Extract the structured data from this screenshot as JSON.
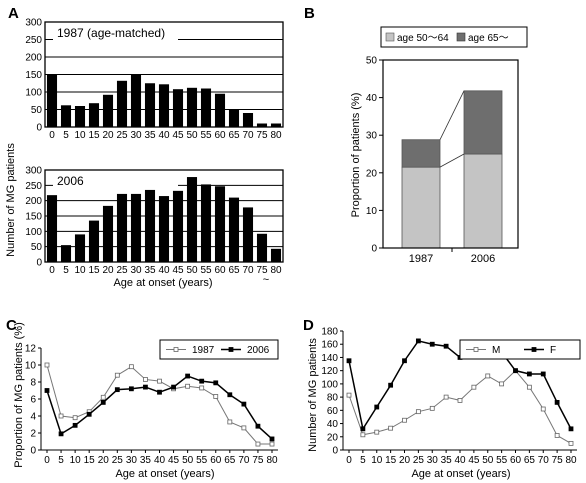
{
  "panels": {
    "a": "A",
    "b": "B",
    "c": "C",
    "d": "D"
  },
  "panel_a": {
    "ylabel": "Number of MG patients",
    "xlabel": "Age at onset  (years)",
    "break_mark": "~",
    "top": {
      "title": "1987 (age-matched)",
      "categories": [
        "0",
        "5",
        "10",
        "15",
        "20",
        "25",
        "30",
        "35",
        "40",
        "45",
        "50",
        "55",
        "60",
        "65",
        "70",
        "75",
        "80"
      ],
      "values": [
        150,
        62,
        60,
        68,
        92,
        132,
        150,
        125,
        122,
        108,
        112,
        110,
        95,
        50,
        40,
        10,
        10
      ],
      "yticks": [
        "0",
        "50",
        "100",
        "150",
        "200",
        "250",
        "300"
      ],
      "ylim": [
        0,
        300
      ]
    },
    "bottom": {
      "title": "2006",
      "categories": [
        "0",
        "5",
        "10",
        "15",
        "20",
        "25",
        "30",
        "35",
        "40",
        "45",
        "50",
        "55",
        "60",
        "65",
        "70",
        "75",
        "80"
      ],
      "values": [
        218,
        55,
        90,
        135,
        183,
        222,
        222,
        235,
        215,
        232,
        277,
        253,
        247,
        210,
        178,
        92,
        43
      ],
      "yticks": [
        "0",
        "50",
        "100",
        "150",
        "200",
        "250",
        "300"
      ],
      "ylim": [
        0,
        300
      ]
    }
  },
  "panel_b": {
    "ylabel": "Proportion of patients (%)",
    "legend": [
      {
        "label": "age 50～64",
        "color": "#c4c4c4"
      },
      {
        "label": "age 65～",
        "color": "#6e6e6e"
      }
    ],
    "categories": [
      "1987",
      "2006"
    ],
    "series": [
      {
        "name": "age 50～64",
        "values": [
          21.5,
          25
        ]
      },
      {
        "name": "age 65～",
        "values": [
          7.3,
          16.8
        ]
      }
    ],
    "yticks": [
      "0",
      "10",
      "20",
      "30",
      "40",
      "50"
    ],
    "ylim": [
      0,
      50
    ]
  },
  "panel_c": {
    "ylabel": "Proportion of MG patients (%)",
    "xlabel": "Age at onset  (years)",
    "categories": [
      "0",
      "5",
      "10",
      "15",
      "20",
      "25",
      "30",
      "35",
      "40",
      "45",
      "50",
      "55",
      "60",
      "65",
      "70",
      "75",
      "80"
    ],
    "series": [
      {
        "name": "1987",
        "style": "open",
        "values": [
          10,
          4,
          3.8,
          4.5,
          6.2,
          8.8,
          9.8,
          8.3,
          8.1,
          7.2,
          7.5,
          7.3,
          6.3,
          3.3,
          2.6,
          0.7,
          0.7
        ]
      },
      {
        "name": "2006",
        "style": "filled",
        "values": [
          7,
          1.9,
          2.9,
          4.2,
          5.6,
          7.1,
          7.2,
          7.4,
          6.8,
          7.4,
          8.7,
          8.1,
          7.9,
          6.5,
          5.4,
          2.8,
          1.3
        ]
      }
    ],
    "yticks": [
      "0",
      "2",
      "4",
      "6",
      "8",
      "10",
      "12"
    ],
    "ylim": [
      0,
      12
    ]
  },
  "panel_d": {
    "ylabel": "Number of MG patients",
    "xlabel": "Age at onset  (years)",
    "categories": [
      "0",
      "5",
      "10",
      "15",
      "20",
      "25",
      "30",
      "35",
      "40",
      "45",
      "50",
      "55",
      "60",
      "65",
      "70",
      "75",
      "80"
    ],
    "series": [
      {
        "name": "M",
        "style": "open",
        "values": [
          83,
          23,
          27,
          33,
          45,
          58,
          63,
          80,
          75,
          95,
          112,
          100,
          120,
          95,
          62,
          22,
          10
        ]
      },
      {
        "name": "F",
        "style": "filled",
        "values": [
          135,
          32,
          65,
          98,
          135,
          165,
          160,
          157,
          140,
          143,
          160,
          148,
          120,
          115,
          115,
          72,
          32
        ]
      }
    ],
    "yticks": [
      "0",
      "20",
      "40",
      "60",
      "80",
      "100",
      "120",
      "140",
      "160",
      "180"
    ],
    "ylim": [
      0,
      180
    ]
  }
}
